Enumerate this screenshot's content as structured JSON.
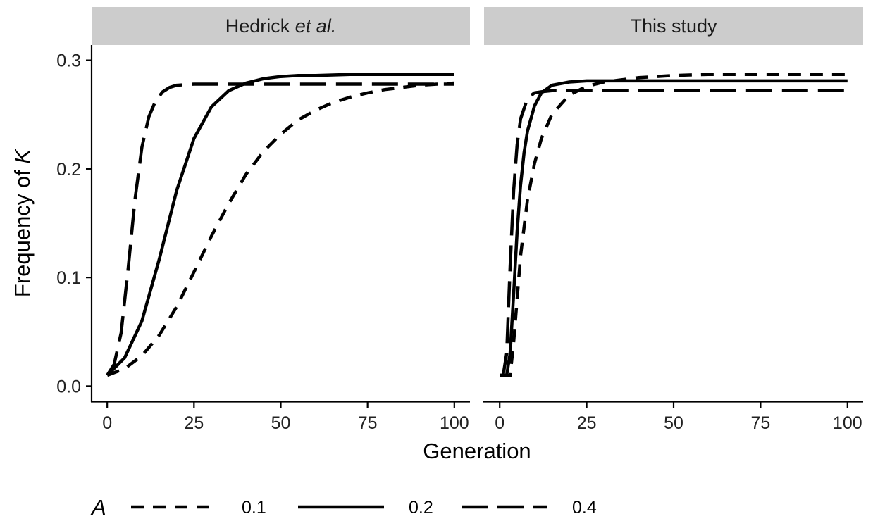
{
  "chart_data": {
    "type": "line",
    "xlabel": "Generation",
    "ylabel_prefix": "Frequency of ",
    "ylabel_var": "K",
    "xlim": [
      -4.5,
      104.5
    ],
    "ylim": [
      -0.014,
      0.314
    ],
    "xticks": [
      0,
      25,
      50,
      75,
      100
    ],
    "yticks": [
      0.0,
      0.1,
      0.2,
      0.3
    ],
    "xtick_labels": [
      "0",
      "25",
      "50",
      "75",
      "100"
    ],
    "ytick_labels": [
      "0.0",
      "0.1",
      "0.2",
      "0.3"
    ],
    "grid": false,
    "legend": {
      "position": "bottom",
      "title": "A",
      "entries": [
        {
          "label": "0.1",
          "dash": "dashed"
        },
        {
          "label": "0.2",
          "dash": "solid"
        },
        {
          "label": "0.4",
          "dash": "longdash"
        }
      ]
    },
    "panels": [
      {
        "title_main": "Hedrick ",
        "title_italic": "et al.",
        "series": [
          {
            "name": "0.1",
            "dash": "dashed",
            "x": [
              0,
              5,
              10,
              15,
              20,
              25,
              30,
              35,
              40,
              45,
              50,
              55,
              60,
              65,
              70,
              75,
              80,
              85,
              90,
              95,
              100
            ],
            "y": [
              0.01,
              0.016,
              0.028,
              0.047,
              0.073,
              0.105,
              0.138,
              0.168,
              0.195,
              0.216,
              0.232,
              0.245,
              0.254,
              0.261,
              0.266,
              0.27,
              0.273,
              0.275,
              0.277,
              0.278,
              0.279
            ]
          },
          {
            "name": "0.2",
            "dash": "solid",
            "x": [
              0,
              5,
              10,
              15,
              20,
              25,
              30,
              35,
              40,
              45,
              50,
              55,
              60,
              70,
              80,
              90,
              100
            ],
            "y": [
              0.01,
              0.026,
              0.06,
              0.117,
              0.18,
              0.228,
              0.257,
              0.272,
              0.279,
              0.283,
              0.285,
              0.286,
              0.286,
              0.287,
              0.287,
              0.287,
              0.287
            ]
          },
          {
            "name": "0.4",
            "dash": "longdash",
            "x": [
              0,
              2,
              4,
              6,
              8,
              10,
              12,
              14,
              16,
              18,
              20,
              25,
              30,
              40,
              50,
              60,
              70,
              80,
              90,
              100
            ],
            "y": [
              0.01,
              0.02,
              0.049,
              0.107,
              0.172,
              0.22,
              0.248,
              0.263,
              0.271,
              0.275,
              0.277,
              0.278,
              0.278,
              0.278,
              0.278,
              0.278,
              0.278,
              0.278,
              0.278,
              0.278
            ]
          }
        ]
      },
      {
        "title_main": "This study",
        "title_italic": "",
        "series": [
          {
            "name": "0.1",
            "dash": "dashed",
            "x": [
              0,
              1,
              2,
              3,
              4,
              5,
              6,
              8,
              10,
              12,
              15,
              20,
              25,
              30,
              40,
              50,
              60,
              70,
              80,
              90,
              100
            ],
            "y": [
              0.01,
              0.01,
              0.01,
              0.01,
              0.04,
              0.08,
              0.12,
              0.172,
              0.205,
              0.228,
              0.25,
              0.268,
              0.276,
              0.28,
              0.284,
              0.286,
              0.287,
              0.287,
              0.287,
              0.287,
              0.287
            ]
          },
          {
            "name": "0.2",
            "dash": "solid",
            "x": [
              0,
              1,
              2,
              3,
              4,
              5,
              6,
              7,
              8,
              10,
              12,
              15,
              20,
              25,
              30,
              40,
              50,
              60,
              70,
              80,
              90,
              100
            ],
            "y": [
              0.01,
              0.01,
              0.01,
              0.03,
              0.085,
              0.142,
              0.185,
              0.215,
              0.235,
              0.258,
              0.27,
              0.277,
              0.28,
              0.281,
              0.281,
              0.281,
              0.281,
              0.281,
              0.281,
              0.281,
              0.281,
              0.281
            ]
          },
          {
            "name": "0.4",
            "dash": "longdash",
            "x": [
              0,
              1,
              2,
              3,
              4,
              5,
              6,
              8,
              10,
              12,
              15,
              20,
              30,
              40,
              50,
              60,
              70,
              80,
              90,
              100
            ],
            "y": [
              0.01,
              0.01,
              0.03,
              0.11,
              0.18,
              0.222,
              0.246,
              0.265,
              0.27,
              0.271,
              0.272,
              0.272,
              0.272,
              0.272,
              0.272,
              0.272,
              0.272,
              0.272,
              0.272,
              0.272
            ]
          }
        ]
      }
    ]
  }
}
